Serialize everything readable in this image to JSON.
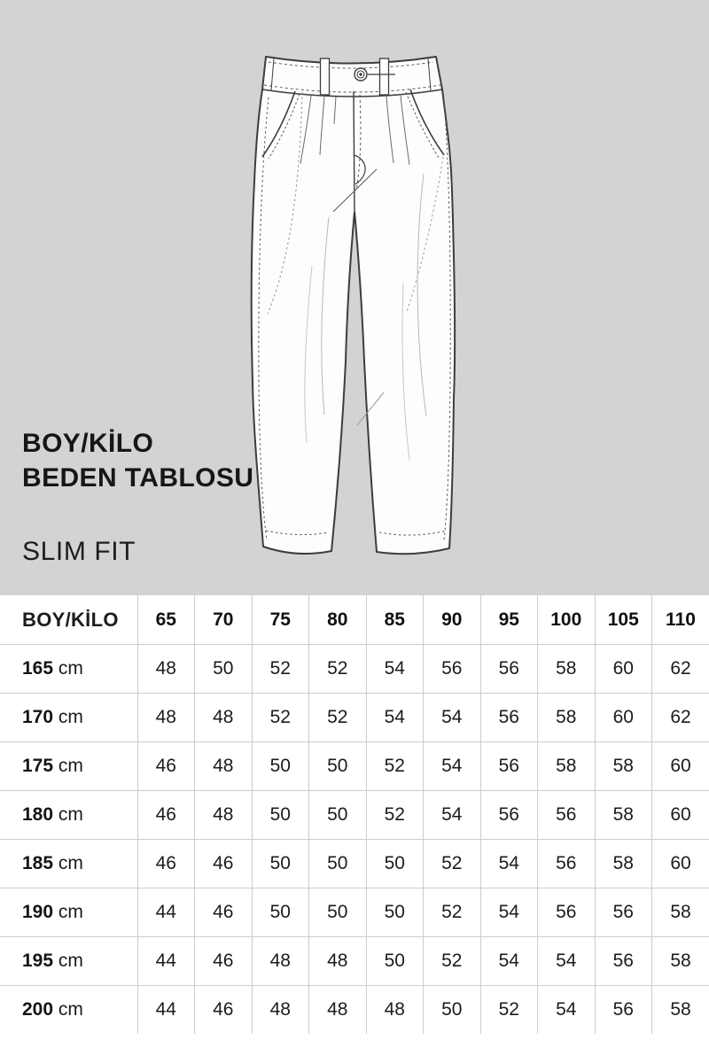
{
  "panel": {
    "title_line1": "BOY/KİLO",
    "title_line2": "BEDEN TABLOSU",
    "fit_label": "SLIM FIT",
    "illustration": "pants-technical-sketch"
  },
  "size_table": {
    "corner_header": "BOY/KİLO",
    "weight_headers": [
      "65",
      "70",
      "75",
      "80",
      "85",
      "90",
      "95",
      "100",
      "105",
      "110"
    ],
    "unit": "cm",
    "rows": [
      {
        "height": "165",
        "unit": "cm",
        "values": [
          48,
          50,
          52,
          52,
          54,
          56,
          56,
          58,
          60,
          62
        ]
      },
      {
        "height": "170",
        "unit": "cm",
        "values": [
          48,
          48,
          52,
          52,
          54,
          54,
          56,
          58,
          60,
          62
        ]
      },
      {
        "height": "175",
        "unit": "cm",
        "values": [
          46,
          48,
          50,
          50,
          52,
          54,
          56,
          58,
          58,
          60
        ]
      },
      {
        "height": "180",
        "unit": "cm",
        "values": [
          46,
          48,
          50,
          50,
          52,
          54,
          56,
          56,
          58,
          60
        ]
      },
      {
        "height": "185",
        "unit": "cm",
        "values": [
          46,
          46,
          50,
          50,
          50,
          52,
          54,
          56,
          58,
          60
        ]
      },
      {
        "height": "190",
        "unit": "cm",
        "values": [
          44,
          46,
          50,
          50,
          50,
          52,
          54,
          56,
          56,
          58
        ]
      },
      {
        "height": "195",
        "unit": "cm",
        "values": [
          44,
          46,
          48,
          48,
          50,
          52,
          54,
          54,
          56,
          58
        ]
      },
      {
        "height": "200",
        "unit": "cm",
        "values": [
          44,
          46,
          48,
          48,
          48,
          50,
          52,
          54,
          56,
          58
        ]
      }
    ]
  },
  "colors": {
    "panel_background": "#d3d3d3",
    "sketch_line": "#3d3d3d",
    "sketch_fill": "#fdfdfd",
    "table_border": "#cccccc",
    "text": "#1c1c1c"
  }
}
